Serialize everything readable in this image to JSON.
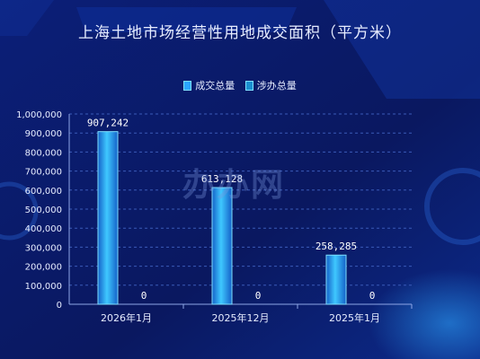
{
  "chart_data": {
    "type": "bar",
    "title": "上海土地市场经营性用地成交面积（平方米）",
    "categories": [
      "2026年1月",
      "2025年12月",
      "2025年1月"
    ],
    "series": [
      {
        "name": "成交总量",
        "values": [
          907242,
          613128,
          258285
        ],
        "labels": [
          "907,242",
          "613,128",
          "258,285"
        ]
      },
      {
        "name": "涉办总量",
        "values": [
          0,
          0,
          0
        ],
        "labels": [
          "0",
          "0",
          "0"
        ]
      }
    ],
    "ylim": [
      0,
      1000000
    ],
    "yticks": [
      "0",
      "100,000",
      "200,000",
      "300,000",
      "400,000",
      "500,000",
      "600,000",
      "700,000",
      "800,000",
      "900,000",
      "1,000,000"
    ],
    "grid": true,
    "legend_position": "top"
  },
  "watermark": "办办网",
  "colors": {
    "background": "#0a1a66",
    "bar_fill_light": "#3fc8ff",
    "bar_fill_dark": "#1461c8",
    "bar_border": "#7fe0ff",
    "text": "#e6ecff"
  }
}
